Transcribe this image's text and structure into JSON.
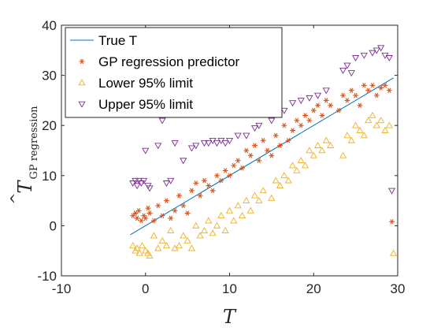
{
  "chart_data": {
    "type": "scatter",
    "title": "",
    "xlabel": "T",
    "ylabel_main": "T",
    "ylabel_sub": "GP regression",
    "xlim": [
      -10,
      30
    ],
    "ylim": [
      -10,
      40
    ],
    "xticks": [
      -10,
      0,
      10,
      20,
      30
    ],
    "yticks": [
      -10,
      0,
      10,
      20,
      30,
      40
    ],
    "grid": false,
    "legend_position": "top-left",
    "series": [
      {
        "name": "True T",
        "kind": "line",
        "color": "#0072BD",
        "x": [
          -1.8,
          29.5
        ],
        "y": [
          -1.8,
          29.5
        ]
      },
      {
        "name": "GP regression predictor",
        "kind": "star",
        "color": "#D95319",
        "x": [
          -1.5,
          -1.2,
          -1.0,
          -0.8,
          -0.5,
          -0.2,
          0.0,
          0.3,
          0.5,
          1.0,
          1.5,
          2.0,
          2.5,
          3.0,
          3.5,
          4.0,
          4.5,
          5.0,
          5.5,
          6.0,
          6.5,
          7.0,
          7.5,
          8.0,
          8.5,
          9.0,
          9.5,
          10.0,
          10.5,
          11.0,
          11.5,
          12.0,
          12.5,
          13.0,
          13.5,
          14.0,
          14.5,
          15.0,
          15.5,
          16.0,
          16.5,
          17.0,
          17.5,
          18.0,
          18.5,
          19.0,
          19.5,
          20.0,
          20.5,
          21.0,
          21.5,
          22.0,
          23.0,
          23.5,
          24.0,
          24.5,
          25.0,
          25.5,
          26.0,
          26.5,
          27.0,
          27.5,
          28.0,
          28.5,
          29.0,
          29.3
        ],
        "y": [
          2.0,
          2.5,
          1.5,
          3.0,
          1.0,
          2.0,
          1.5,
          3.5,
          2.5,
          1.0,
          4.0,
          2.0,
          5.0,
          1.5,
          3.0,
          6.0,
          4.0,
          2.5,
          7.0,
          8.5,
          6.0,
          9.0,
          8.0,
          7.0,
          10.0,
          9.0,
          11.0,
          10.0,
          12.0,
          13.0,
          11.5,
          15.0,
          14.0,
          16.0,
          13.0,
          17.0,
          15.0,
          14.0,
          18.0,
          16.0,
          20.0,
          17.0,
          19.0,
          21.0,
          20.0,
          22.0,
          21.0,
          23.0,
          24.0,
          22.0,
          25.0,
          24.0,
          23.0,
          26.0,
          25.0,
          27.0,
          26.0,
          24.0,
          28.0,
          27.0,
          28.0,
          26.0,
          27.5,
          28.0,
          27.0,
          0.8
        ]
      },
      {
        "name": "Lower 95% limit",
        "kind": "triangle-up",
        "color": "#EDB120",
        "x": [
          -1.5,
          -1.2,
          -1.0,
          -0.7,
          -0.4,
          0.0,
          0.3,
          0.5,
          1.0,
          1.5,
          2.0,
          2.5,
          3.0,
          3.5,
          4.0,
          4.5,
          5.0,
          5.5,
          6.0,
          6.5,
          7.0,
          7.5,
          8.0,
          8.5,
          9.0,
          9.5,
          10.0,
          10.5,
          11.0,
          11.5,
          12.0,
          12.5,
          13.0,
          13.5,
          14.0,
          15.0,
          15.5,
          16.0,
          16.5,
          17.0,
          17.5,
          18.0,
          18.5,
          19.0,
          19.5,
          20.0,
          20.5,
          21.0,
          21.5,
          22.0,
          23.5,
          24.0,
          24.5,
          25.0,
          25.5,
          26.0,
          26.5,
          27.0,
          27.5,
          28.0,
          28.5,
          29.0,
          29.5
        ],
        "y": [
          -4.0,
          -5.0,
          -4.5,
          -5.5,
          -4.0,
          -5.0,
          -5.5,
          -6.0,
          -2.0,
          -4.5,
          -3.0,
          -4.0,
          -1.0,
          -4.5,
          -4.0,
          -2.0,
          -3.0,
          -4.5,
          0.0,
          -2.0,
          -1.0,
          1.0,
          -1.5,
          0.0,
          2.0,
          -1.0,
          3.0,
          1.0,
          4.0,
          2.0,
          5.0,
          3.0,
          6.0,
          5.0,
          7.0,
          5.5,
          9.0,
          8.0,
          10.0,
          9.0,
          12.0,
          11.0,
          13.0,
          12.0,
          15.0,
          14.0,
          16.0,
          15.0,
          17.0,
          16.0,
          14.0,
          18.0,
          17.0,
          20.0,
          19.0,
          18.0,
          21.0,
          22.0,
          20.0,
          21.0,
          19.0,
          20.0,
          -5.5
        ]
      },
      {
        "name": "Upper 95% limit",
        "kind": "triangle-down",
        "color": "#7E2F8E",
        "x": [
          -1.5,
          -1.2,
          -1.0,
          -0.8,
          -0.5,
          -0.2,
          0.0,
          0.3,
          0.5,
          1.5,
          2.0,
          2.5,
          3.0,
          3.5,
          4.5,
          5.5,
          6.0,
          7.0,
          7.5,
          8.0,
          8.5,
          9.0,
          9.5,
          10.0,
          11.0,
          12.0,
          13.0,
          13.5,
          15.0,
          16.5,
          17.5,
          18.5,
          19.5,
          20.5,
          21.5,
          23.5,
          24.0,
          24.5,
          25.0,
          26.0,
          27.0,
          27.5,
          28.0,
          28.5,
          29.0,
          29.3
        ],
        "y": [
          8.5,
          9.0,
          8.0,
          9.0,
          8.5,
          9.0,
          15.0,
          8.0,
          7.5,
          16.0,
          21.0,
          8.5,
          9.0,
          16.5,
          13.0,
          15.5,
          16.0,
          16.5,
          16.5,
          17.0,
          16.5,
          17.0,
          16.5,
          17.0,
          18.0,
          18.0,
          19.5,
          20.0,
          21.0,
          23.0,
          24.5,
          25.0,
          25.5,
          26.0,
          27.0,
          31.0,
          32.0,
          30.5,
          33.5,
          34.0,
          34.5,
          35.0,
          35.5,
          34.0,
          33.5,
          7.0
        ]
      }
    ]
  }
}
